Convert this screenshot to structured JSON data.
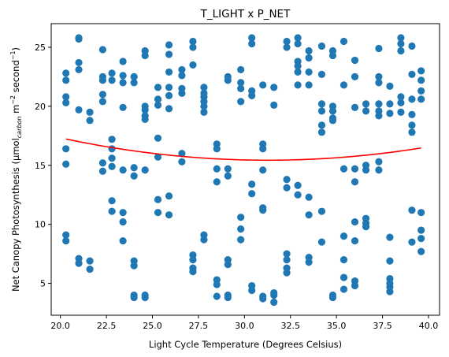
{
  "chart_data": {
    "type": "scatter",
    "title": "T_LIGHT x P_NET",
    "xlabel": "Light Cycle Temperature (Degrees Celsius)",
    "ylabel_parts": {
      "pre": "Net Canopy Photosynthesis (μmol",
      "sub": "carbon",
      "mid1": " m",
      "sup1": "−2",
      "mid2": " second",
      "sup2": "−1",
      "post": ")"
    },
    "xlim": [
      19.5,
      40.6
    ],
    "ylim": [
      2.3,
      27.0
    ],
    "x_ticks": [
      "20.0",
      "22.5",
      "25.0",
      "27.5",
      "30.0",
      "32.5",
      "35.0",
      "37.5",
      "40.0"
    ],
    "y_ticks": [
      "5",
      "10",
      "15",
      "20",
      "25"
    ],
    "colors": {
      "points": "#1f77b4",
      "fit": "#ff0000"
    },
    "fit_curve": {
      "type": "quadratic",
      "x": [
        20.3,
        22.0,
        24.0,
        26.0,
        28.0,
        30.0,
        31.5,
        33.0,
        35.0,
        37.0,
        39.6
      ],
      "y": [
        17.2,
        16.7,
        16.25,
        15.9,
        15.6,
        15.45,
        15.4,
        15.45,
        15.65,
        15.9,
        16.5
      ]
    },
    "x_values": [
      20.3,
      21.0,
      21.6,
      22.3,
      22.8,
      23.4,
      24.0,
      24.6,
      25.3,
      25.9,
      26.6,
      27.2,
      27.8,
      28.5,
      29.1,
      29.8,
      30.4,
      31.0,
      31.6,
      32.3,
      32.9,
      33.5,
      34.2,
      34.8,
      35.4,
      36.0,
      36.6,
      37.3,
      37.9,
      38.5,
      39.1,
      39.6
    ],
    "y_groups": [
      [
        22.8,
        22.2,
        20.8,
        20.3,
        16.4,
        15.1,
        9.1,
        8.6
      ],
      [
        25.8,
        25.7,
        23.7,
        23.1,
        19.7,
        7.1,
        6.7
      ],
      [
        19.5,
        18.8,
        6.9,
        6.2
      ],
      [
        24.8,
        22.5,
        22.2,
        21.0,
        20.4,
        15.2,
        14.5
      ],
      [
        22.8,
        22.2,
        17.2,
        16.4,
        15.6,
        14.9,
        12.0,
        11.1
      ],
      [
        23.8,
        22.6,
        22.0,
        19.9,
        14.6,
        11.0,
        10.2,
        8.6
      ],
      [
        22.5,
        22.0,
        14.8,
        14.1,
        6.9,
        6.5,
        4.0,
        3.8
      ],
      [
        24.7,
        24.3,
        20.0,
        19.7,
        19.2,
        18.9,
        14.6,
        4.0,
        3.8
      ],
      [
        21.6,
        20.6,
        20.1,
        17.3,
        15.7,
        12.1,
        11.0
      ],
      [
        25.2,
        24.4,
        22.9,
        21.6,
        20.9,
        19.8,
        12.4,
        10.8
      ],
      [
        23.1,
        22.6,
        21.5,
        21.1,
        16.0,
        15.3
      ],
      [
        25.5,
        25.0,
        23.5,
        7.4,
        7.0,
        6.3,
        6.0
      ],
      [
        21.6,
        21.1,
        20.8,
        20.4,
        20.0,
        19.5,
        9.1,
        8.7
      ],
      [
        16.8,
        16.4,
        14.7,
        13.6,
        5.3,
        4.9,
        3.9
      ],
      [
        22.5,
        22.2,
        14.7,
        14.1,
        7.0,
        6.6,
        4.0,
        3.8
      ],
      [
        23.1,
        22.0,
        21.5,
        20.4,
        10.6,
        9.6,
        8.7
      ],
      [
        25.8,
        25.3,
        21.3,
        20.9,
        13.4,
        12.6,
        4.8,
        4.4
      ],
      [
        21.8,
        16.8,
        16.4,
        14.6,
        11.4,
        11.2,
        3.9,
        3.7
      ],
      [
        21.6,
        20.1,
        4.2,
        4.0,
        3.4
      ],
      [
        25.5,
        25.0,
        13.8,
        13.1,
        7.5,
        7.0,
        6.3,
        5.9
      ],
      [
        25.8,
        25.3,
        23.8,
        23.4,
        22.9,
        21.8,
        13.3,
        12.5
      ],
      [
        24.7,
        24.1,
        22.9,
        21.8,
        12.3,
        10.8,
        7.2,
        6.8
      ],
      [
        25.1,
        22.7,
        20.2,
        19.6,
        18.4,
        17.8,
        11.1,
        8.5
      ],
      [
        24.7,
        24.3,
        20.0,
        19.6,
        19.0,
        18.8,
        4.0,
        3.8
      ],
      [
        25.5,
        21.8,
        14.7,
        9.0,
        7.0,
        5.5,
        4.5
      ],
      [
        23.9,
        22.5,
        19.9,
        14.7,
        13.6,
        10.2,
        8.6,
        5.2,
        4.8
      ],
      [
        20.2,
        19.6,
        15.0,
        14.6,
        10.5,
        10.1,
        9.8
      ],
      [
        24.9,
        22.5,
        22.0,
        20.2,
        19.6,
        19.2,
        15.3,
        14.6
      ],
      [
        21.7,
        20.2,
        19.4,
        8.9,
        6.9,
        5.4,
        5.0,
        4.7,
        4.3
      ],
      [
        25.8,
        25.3,
        24.7,
        20.8,
        20.3,
        19.5
      ],
      [
        25.1,
        22.7,
        20.6,
        19.3,
        18.4,
        17.8,
        11.2,
        8.5
      ],
      [
        23.0,
        22.2,
        21.3,
        20.6,
        11.0,
        9.5,
        8.8,
        7.7
      ]
    ]
  }
}
